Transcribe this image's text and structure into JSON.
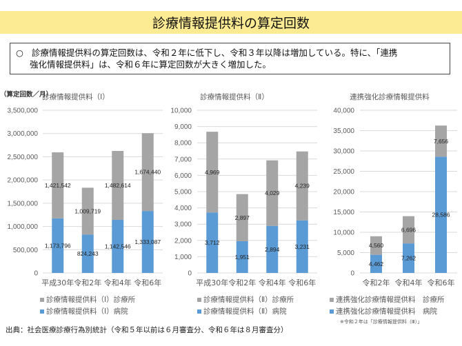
{
  "header": {
    "title": "診療情報提供料の算定回数"
  },
  "summary": {
    "bullet": "○",
    "line1": "診療情報提供料の算定回数は、令和２年に低下し、令和３年以降は増加している。特に、「連携",
    "line2": "強化情報提供料」は、令和６年に算定回数が大きく増加した。"
  },
  "colors": {
    "clinic": "#A5A5A5",
    "hospital": "#5B9BD5",
    "grid": "#D9D9D9",
    "title_bg": "#FDEB93"
  },
  "chart_data": [
    {
      "type": "bar",
      "stacked": true,
      "title": "診療情報提供料（Ⅰ）",
      "ylabel": "（算定回数／月）",
      "xlabel": "",
      "categories": [
        "平成30年",
        "令和2年",
        "令和4年",
        "令和6年"
      ],
      "ylim": [
        0,
        3500000
      ],
      "yticks": [
        0,
        500000,
        1000000,
        1500000,
        2000000,
        2500000,
        3000000,
        3500000
      ],
      "ytick_labels": [
        "0",
        "500,000",
        "1,000,000",
        "1,500,000",
        "2,000,000",
        "2,500,000",
        "3,000,000",
        "3,500,000"
      ],
      "grid": true,
      "legend_position": "bottom",
      "series": [
        {
          "name": "診療情報提供料（Ⅰ）病院",
          "key": "hospital",
          "values": [
            1173796,
            824243,
            1142546,
            1333087
          ],
          "labels": [
            "1,173,796",
            "824,243",
            "1,142,546",
            "1,333,087"
          ]
        },
        {
          "name": "診療情報提供料（Ⅰ）診療所",
          "key": "clinic",
          "values": [
            1421542,
            1009719,
            1482614,
            1674440
          ],
          "labels": [
            "1,421,542",
            "1,009,719",
            "1,482,614",
            "1,674,440"
          ]
        }
      ],
      "legend": [
        "診療情報提供料（Ⅰ）診療所",
        "診療情報提供料（Ⅰ）病院"
      ]
    },
    {
      "type": "bar",
      "stacked": true,
      "title": "診療情報提供料（Ⅱ）",
      "ylabel": "",
      "xlabel": "",
      "categories": [
        "平成30年",
        "令和2年",
        "令和4年",
        "令和6年"
      ],
      "ylim": [
        0,
        10000
      ],
      "yticks": [
        0,
        1000,
        2000,
        3000,
        4000,
        5000,
        6000,
        7000,
        8000,
        9000,
        10000
      ],
      "ytick_labels": [
        "0",
        "1,000",
        "2,000",
        "3,000",
        "4,000",
        "5,000",
        "6,000",
        "7,000",
        "8,000",
        "9,000",
        "10,000"
      ],
      "grid": true,
      "legend_position": "bottom",
      "series": [
        {
          "name": "診療情報提供料（Ⅱ）病院",
          "key": "hospital",
          "values": [
            3712,
            1951,
            2894,
            3231
          ],
          "labels": [
            "3,712",
            "1,951",
            "2,894",
            "3,231"
          ]
        },
        {
          "name": "診療情報提供料（Ⅱ）診療所",
          "key": "clinic",
          "values": [
            4969,
            2897,
            4029,
            4239
          ],
          "labels": [
            "4,969",
            "2,897",
            "4,029",
            "4,239"
          ]
        }
      ],
      "legend": [
        "診療情報提供料（Ⅱ）診療所",
        "診療情報提供料（Ⅱ）病院"
      ]
    },
    {
      "type": "bar",
      "stacked": true,
      "title": "連携強化診療情報提供料",
      "ylabel": "",
      "xlabel": "",
      "categories": [
        "令和2年",
        "令和4年",
        "令和6年"
      ],
      "ylim": [
        0,
        40000
      ],
      "yticks": [
        0,
        5000,
        10000,
        15000,
        20000,
        25000,
        30000,
        35000,
        40000
      ],
      "ytick_labels": [
        "0",
        "5,000",
        "10,000",
        "15,000",
        "20,000",
        "25,000",
        "30,000",
        "35,000",
        "40,000"
      ],
      "grid": true,
      "legend_position": "bottom",
      "series": [
        {
          "name": "連携強化診療情報提供料 病院",
          "key": "hospital",
          "values": [
            4462,
            7262,
            28586
          ],
          "labels": [
            "4,462",
            "7,262",
            "28,586"
          ]
        },
        {
          "name": "連携強化診療情報提供料 診療所",
          "key": "clinic",
          "values": [
            4560,
            6696,
            7656
          ],
          "labels": [
            "4,560",
            "6,696",
            "7,656"
          ]
        }
      ],
      "legend": [
        "連携強化診療情報提供料　診療所",
        "連携強化診療情報提供料　病院"
      ],
      "footnote": "※令和２年は「診療情報提供料（Ⅲ）」"
    }
  ],
  "source": "出典：社会医療診療行為別統計（令和５年以前は６月審査分、令和６年は８月審査分）"
}
